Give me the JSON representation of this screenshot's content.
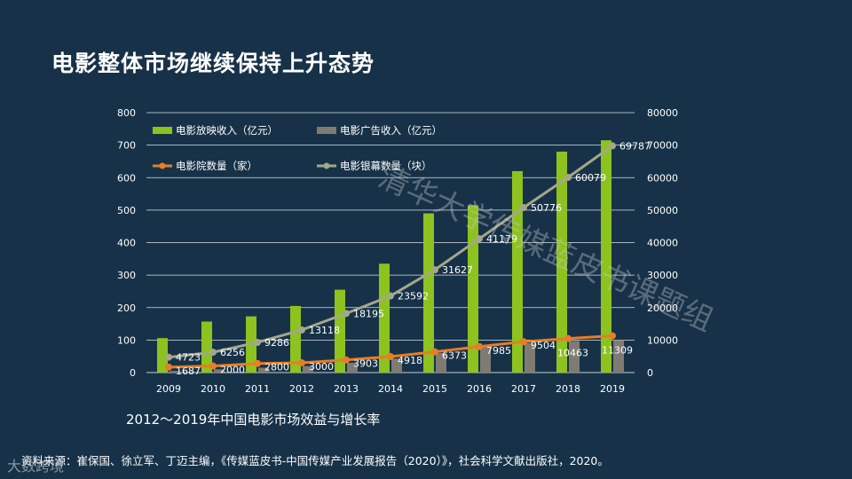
{
  "title": "电影整体市场继续保持上升态势",
  "caption": "2012～2019年中国电影市场效益与增长率",
  "source": "资料来源：崔保国、徐立军、丁迈主编，《传媒蓝皮书-中国传媒产业发展报告（2020）》，社会科学文献出版社，2020。",
  "watermark": "清华大学传媒蓝皮书课题组",
  "logo": "大数跨境",
  "colors": {
    "background": "#173248",
    "box_office": "#8dc21f",
    "ad_revenue": "#7f7b72",
    "cinemas": "#e87d26",
    "screens": "#a3a88a"
  },
  "chart_data": {
    "type": "bar+line",
    "categories": [
      "2009",
      "2010",
      "2011",
      "2012",
      "2013",
      "2014",
      "2015",
      "2016",
      "2017",
      "2018",
      "2019"
    ],
    "left_axis": {
      "ylim": [
        0,
        800
      ],
      "ticks": [
        "0",
        "100",
        "200",
        "300",
        "400",
        "500",
        "600",
        "700",
        "800"
      ]
    },
    "right_axis": {
      "ylim": [
        0,
        80000
      ],
      "ticks": [
        "0",
        "10000",
        "20000",
        "30000",
        "40000",
        "50000",
        "60000",
        "70000",
        "80000"
      ]
    },
    "series": [
      {
        "name": "电影放映收入（亿元）",
        "type": "bar",
        "axis": "left",
        "values": [
          106,
          157,
          173,
          205,
          255,
          335,
          490,
          515,
          620,
          680,
          715
        ]
      },
      {
        "name": "电影广告收入（亿元）",
        "type": "bar",
        "axis": "left",
        "values": [
          5,
          10,
          15,
          20,
          30,
          43,
          60,
          78,
          90,
          97,
          100
        ]
      },
      {
        "name": "电影院数量（家）",
        "type": "line",
        "axis": "right",
        "values": [
          1687,
          2000,
          2800,
          3000,
          3903,
          4918,
          6373,
          7985,
          9504,
          10463,
          11309
        ],
        "labels": [
          "1687",
          "2000",
          "2800",
          "3000",
          "3903",
          "4918",
          "6373",
          "7985",
          "9504",
          "10463",
          "11309"
        ]
      },
      {
        "name": "电影银幕数量（块）",
        "type": "line",
        "axis": "right",
        "values": [
          4723,
          6256,
          9286,
          13118,
          18195,
          23592,
          31627,
          41179,
          50776,
          60079,
          69787
        ],
        "labels": [
          "4723",
          "6256",
          "9286",
          "13118",
          "18195",
          "23592",
          "31627",
          "41179",
          "50776",
          "60079",
          "69787"
        ]
      }
    ]
  }
}
